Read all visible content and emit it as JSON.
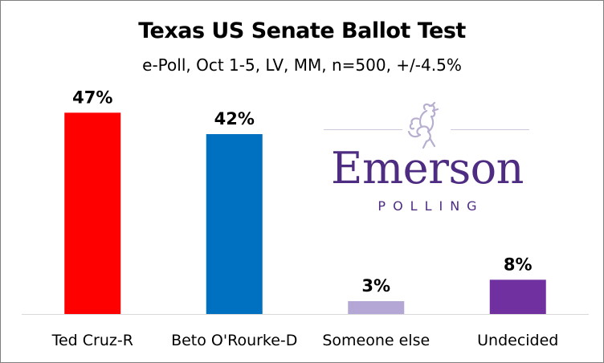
{
  "chart_data": {
    "type": "bar",
    "title": "Texas US Senate Ballot Test",
    "subtitle": "e-Poll, Oct 1-5, LV, MM, n=500, +/-4.5%",
    "categories": [
      "Ted Cruz-R",
      "Beto O'Rourke-D",
      "Someone else",
      "Undecided"
    ],
    "values": [
      47,
      42,
      3,
      8
    ],
    "data_labels": [
      "47%",
      "42%",
      "3%",
      "8%"
    ],
    "colors": [
      "#ff0000",
      "#0070c0",
      "#b4a7d6",
      "#7030a0"
    ],
    "ylim": [
      0,
      60
    ],
    "grid": false,
    "legend": "none",
    "xlabel": "",
    "ylabel": ""
  },
  "logo": {
    "wordmark": "Emerson",
    "subtext": "POLLING",
    "color": "#4d2c81",
    "emblem": "lion-icon"
  }
}
